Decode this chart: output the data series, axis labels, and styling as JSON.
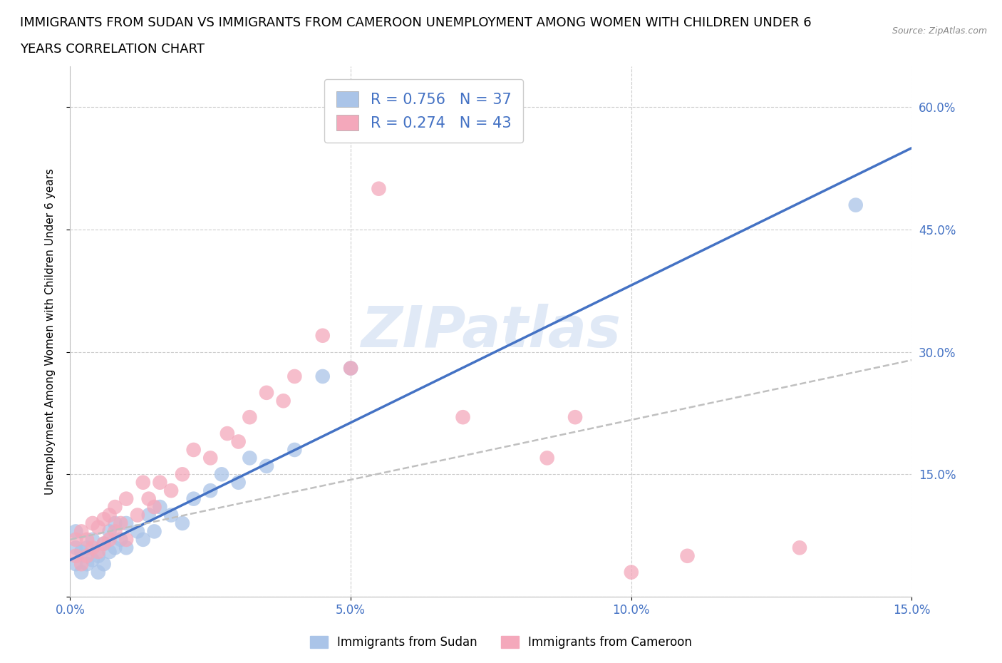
{
  "title_line1": "IMMIGRANTS FROM SUDAN VS IMMIGRANTS FROM CAMEROON UNEMPLOYMENT AMONG WOMEN WITH CHILDREN UNDER 6",
  "title_line2": "YEARS CORRELATION CHART",
  "source": "Source: ZipAtlas.com",
  "ylabel": "Unemployment Among Women with Children Under 6 years",
  "xlim": [
    0.0,
    0.15
  ],
  "ylim": [
    0.0,
    0.65
  ],
  "xticks": [
    0.0,
    0.05,
    0.1,
    0.15
  ],
  "yticks": [
    0.0,
    0.15,
    0.3,
    0.45,
    0.6
  ],
  "xtick_labels": [
    "0.0%",
    "5.0%",
    "10.0%",
    "15.0%"
  ],
  "ytick_labels_right": [
    "",
    "15.0%",
    "30.0%",
    "45.0%",
    "60.0%"
  ],
  "sudan_color": "#aac4e8",
  "cameroon_color": "#f4a8bb",
  "sudan_R": 0.756,
  "sudan_N": 37,
  "cameroon_R": 0.274,
  "cameroon_N": 43,
  "watermark": "ZIPatlas",
  "sudan_x": [
    0.001,
    0.001,
    0.001,
    0.002,
    0.002,
    0.003,
    0.003,
    0.004,
    0.004,
    0.005,
    0.005,
    0.006,
    0.006,
    0.007,
    0.007,
    0.008,
    0.008,
    0.009,
    0.01,
    0.01,
    0.012,
    0.013,
    0.014,
    0.015,
    0.016,
    0.018,
    0.02,
    0.022,
    0.025,
    0.027,
    0.03,
    0.032,
    0.035,
    0.04,
    0.045,
    0.05,
    0.14
  ],
  "sudan_y": [
    0.04,
    0.06,
    0.08,
    0.03,
    0.055,
    0.04,
    0.06,
    0.045,
    0.07,
    0.03,
    0.05,
    0.04,
    0.065,
    0.055,
    0.08,
    0.06,
    0.09,
    0.07,
    0.06,
    0.09,
    0.08,
    0.07,
    0.1,
    0.08,
    0.11,
    0.1,
    0.09,
    0.12,
    0.13,
    0.15,
    0.14,
    0.17,
    0.16,
    0.18,
    0.27,
    0.28,
    0.48
  ],
  "cameroon_x": [
    0.001,
    0.001,
    0.002,
    0.002,
    0.003,
    0.003,
    0.004,
    0.004,
    0.005,
    0.005,
    0.006,
    0.006,
    0.007,
    0.007,
    0.008,
    0.008,
    0.009,
    0.01,
    0.01,
    0.012,
    0.013,
    0.014,
    0.015,
    0.016,
    0.018,
    0.02,
    0.022,
    0.025,
    0.028,
    0.03,
    0.032,
    0.035,
    0.038,
    0.04,
    0.045,
    0.05,
    0.055,
    0.07,
    0.085,
    0.09,
    0.1,
    0.11,
    0.13
  ],
  "cameroon_y": [
    0.05,
    0.07,
    0.04,
    0.08,
    0.05,
    0.07,
    0.06,
    0.09,
    0.055,
    0.085,
    0.065,
    0.095,
    0.07,
    0.1,
    0.08,
    0.11,
    0.09,
    0.07,
    0.12,
    0.1,
    0.14,
    0.12,
    0.11,
    0.14,
    0.13,
    0.15,
    0.18,
    0.17,
    0.2,
    0.19,
    0.22,
    0.25,
    0.24,
    0.27,
    0.32,
    0.28,
    0.5,
    0.22,
    0.17,
    0.22,
    0.03,
    0.05,
    0.06
  ],
  "background_color": "#ffffff",
  "grid_color": "#cccccc",
  "sudan_line_color": "#4472c4",
  "cameroon_trendline_color": "#c0c0c0",
  "title_fontsize": 13,
  "axis_label_fontsize": 11,
  "tick_fontsize": 12,
  "right_tick_color": "#4472c4"
}
